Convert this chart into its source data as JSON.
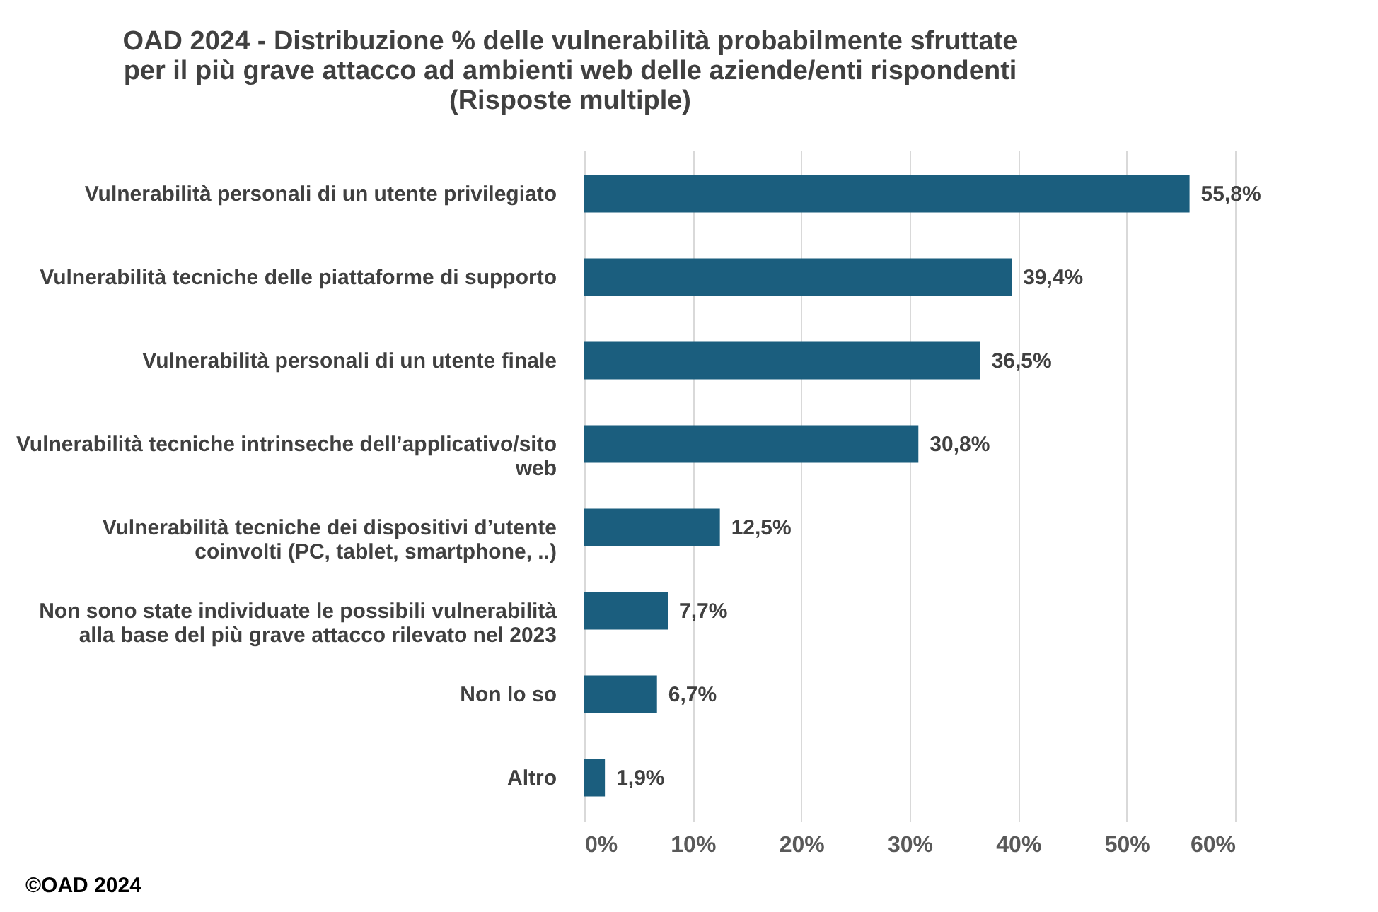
{
  "chart_data": {
    "type": "bar",
    "orientation": "horizontal",
    "title": "OAD 2024 - Distribuzione % delle vulnerabilità probabilmente sfruttate per il più grave attacco ad ambienti web delle aziende/enti rispondenti (Risposte multiple)",
    "categories": [
      "Vulnerabilità personali di un utente privilegiato",
      "Vulnerabilità tecniche delle piattaforme di supporto",
      "Vulnerabilità personali di un utente finale",
      "Vulnerabilità tecniche intrinseche dell’applicativo/sito web",
      "Vulnerabilità tecniche dei dispositivi d’utente coinvolti (PC, tablet, smartphone, ..)",
      "Non sono state individuate le possibili vulnerabilità alla base del più grave attacco rilevato nel 2023",
      "Non lo so",
      "Altro"
    ],
    "values": [
      55.8,
      39.4,
      36.5,
      30.8,
      12.5,
      7.7,
      6.7,
      1.9
    ],
    "value_labels": [
      "55,8%",
      "39,4%",
      "36,5%",
      "30,8%",
      "12,5%",
      "7,7%",
      "6,7%",
      "1,9%"
    ],
    "color": "#1b5e7e",
    "xlim": [
      0,
      60
    ],
    "xticks": [
      {
        "value": 0,
        "label": "0%"
      },
      {
        "value": 10,
        "label": "10%"
      },
      {
        "value": 20,
        "label": "20%"
      },
      {
        "value": 30,
        "label": "30%"
      },
      {
        "value": 40,
        "label": "40%"
      },
      {
        "value": 50,
        "label": "50%"
      },
      {
        "value": 60,
        "label": "60%"
      }
    ],
    "grid": "x",
    "annotations": [
      "©OAD 2024"
    ]
  }
}
